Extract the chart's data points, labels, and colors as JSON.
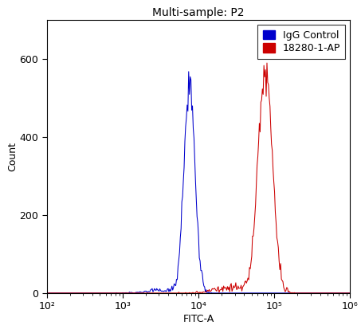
{
  "title": "Multi-sample: P2",
  "xlabel": "FITC-A",
  "ylabel": "Count",
  "xlim_log": [
    2,
    6
  ],
  "ylim": [
    0,
    700
  ],
  "yticks": [
    0,
    200,
    400,
    600
  ],
  "xticks_major": [
    100,
    1000,
    10000,
    100000,
    1000000
  ],
  "xtick_labels": [
    "10²",
    "10³",
    "10⁴",
    "10⁵",
    "10⁶"
  ],
  "blue_label": "IgG Control",
  "red_label": "18280-1-AP",
  "blue_color": "#0000cc",
  "red_color": "#cc0000",
  "blue_peak_log": 3.88,
  "blue_sigma_log": 0.072,
  "blue_peak_height": 565,
  "red_peak_log": 4.88,
  "red_sigma_log": 0.095,
  "red_peak_height": 590,
  "background_color": "#ffffff",
  "title_fontsize": 10,
  "axis_fontsize": 9,
  "legend_fontsize": 9,
  "n_bins": 400,
  "n_points": 12000,
  "seed": 123
}
